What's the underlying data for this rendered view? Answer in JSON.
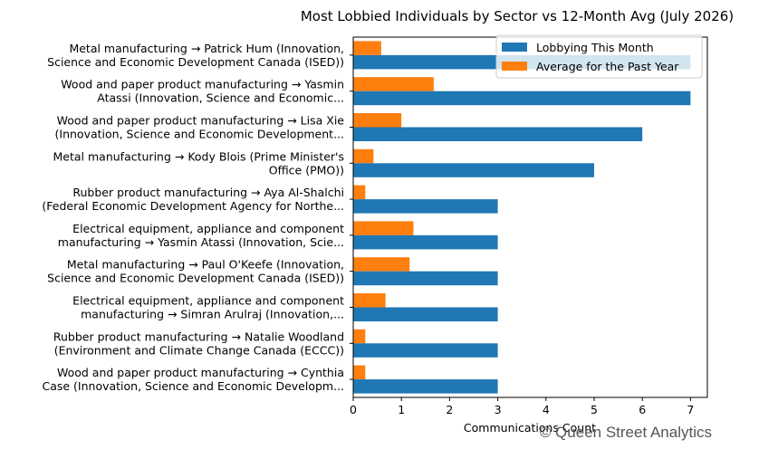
{
  "chart_data": {
    "type": "bar",
    "orientation": "horizontal",
    "title": "Most Lobbied Individuals by Sector vs 12-Month Avg (July 2026)",
    "xlabel": "Communications Count",
    "ylabel": "",
    "xlim": [
      0,
      7.35
    ],
    "xticks": [
      0,
      1,
      2,
      3,
      4,
      5,
      6,
      7
    ],
    "grid": false,
    "legend_position": "top-right",
    "categories": [
      [
        "Metal manufacturing → Patrick Hum (Innovation,",
        "Science and Economic Development Canada (ISED))"
      ],
      [
        "Wood and paper product manufacturing → Yasmin",
        "Atassi (Innovation, Science and Economic..."
      ],
      [
        "Wood and paper product manufacturing → Lisa Xie",
        "(Innovation, Science and Economic Development..."
      ],
      [
        "Metal manufacturing → Kody Blois (Prime Minister's",
        "Office (PMO))"
      ],
      [
        "Rubber product manufacturing → Aya Al-Shalchi",
        "(Federal Economic Development Agency for Northe..."
      ],
      [
        "Electrical equipment, appliance and component",
        "manufacturing → Yasmin Atassi (Innovation, Scie..."
      ],
      [
        "Metal manufacturing → Paul O'Keefe (Innovation,",
        "Science and Economic Development Canada (ISED))"
      ],
      [
        "Electrical equipment, appliance and component",
        "manufacturing → Simran Arulraj (Innovation,..."
      ],
      [
        "Rubber product manufacturing → Natalie Woodland",
        "(Environment and Climate Change Canada (ECCC))"
      ],
      [
        "Wood and paper product manufacturing → Cynthia",
        "Case (Innovation, Science and Economic Developm..."
      ]
    ],
    "series": [
      {
        "name": "Lobbying This Month",
        "color": "#1f77b4",
        "values": [
          7,
          7,
          6,
          5,
          3,
          3,
          3,
          3,
          3,
          3
        ]
      },
      {
        "name": "Average for the Past Year",
        "color": "#ff7f0e",
        "values": [
          0.58,
          1.67,
          1.0,
          0.42,
          0.25,
          1.25,
          1.17,
          0.67,
          0.25,
          0.25
        ]
      }
    ]
  },
  "watermark": "© Queen Street Analytics"
}
